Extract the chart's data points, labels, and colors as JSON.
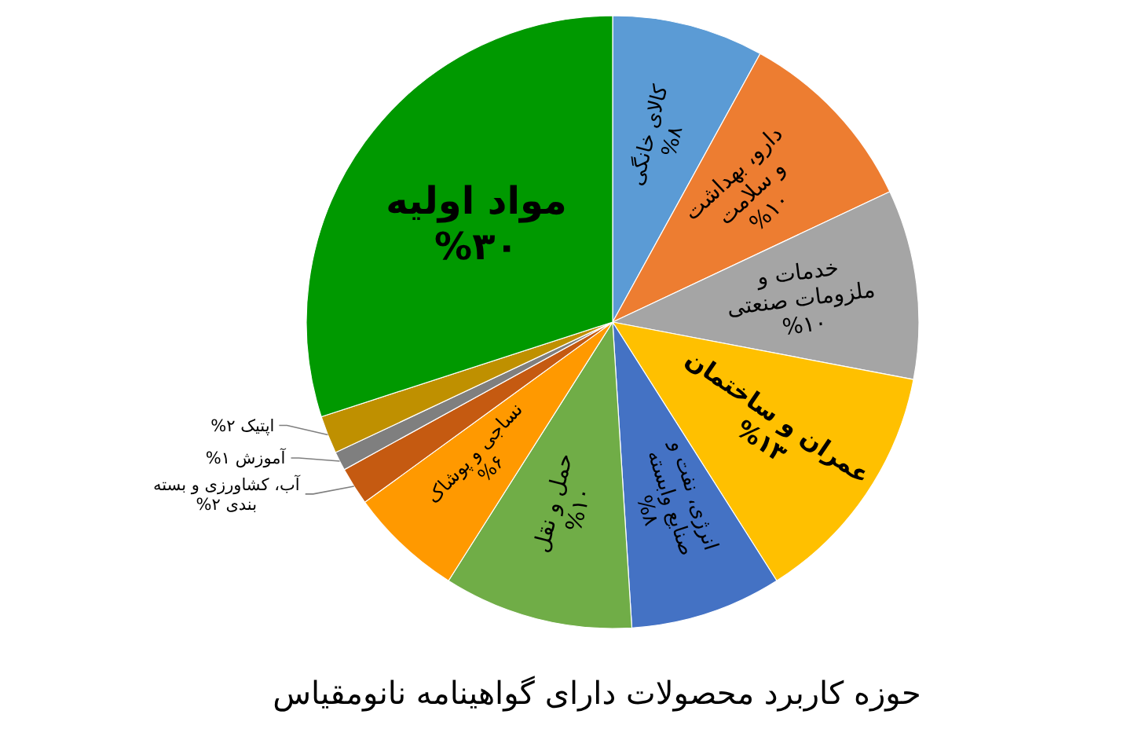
{
  "chart_data": {
    "type": "pie",
    "title": "حوزه کاربرد محصولات دارای گواهینامه نانومقیاس",
    "categories": [
      "کالای خانگی",
      "دارو، بهداشت و سلامت",
      "خدمات و ملزومات صنعتی",
      "عمران و ساختمان",
      "انرژی، نفت و صنایع وابسته",
      "حمل و نقل",
      "نساجی و پوشاک",
      "آب، کشاورزی و بسته بندی",
      "آموزش",
      "اپتیک",
      "مواد اولیه"
    ],
    "values": [
      8,
      10,
      10,
      13,
      8,
      10,
      6,
      2,
      1,
      2,
      30
    ],
    "colors": [
      "#5b9bd5",
      "#ed7d31",
      "#a5a5a5",
      "#ffc000",
      "#4472c4",
      "#70ad47",
      "#ff9900",
      "#c55a11",
      "#7f7f7f",
      "#bf9000",
      "#009900"
    ],
    "value_labels": [
      "%۸",
      "%۱۰",
      "%۱۰",
      "%۱۳",
      "%۸",
      "%۱۰",
      "%۶",
      "%۲",
      "%۱",
      "%۲",
      "%۳۰"
    ]
  }
}
